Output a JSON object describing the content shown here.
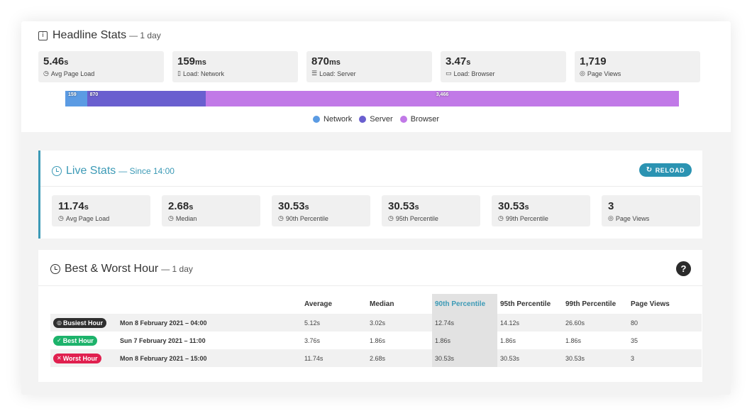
{
  "headline": {
    "title": "Headline Stats",
    "subtitle": "— 1 day",
    "stats": [
      {
        "value": "5.46",
        "unit": "s",
        "label": "Avg Page Load",
        "icon": "clock-icon"
      },
      {
        "value": "159",
        "unit": "ms",
        "label": "Load: Network",
        "icon": "phone-icon"
      },
      {
        "value": "870",
        "unit": "ms",
        "label": "Load: Server",
        "icon": "server-icon"
      },
      {
        "value": "3.47",
        "unit": "s",
        "label": "Load: Browser",
        "icon": "monitor-icon"
      },
      {
        "value": "1,719",
        "unit": "",
        "label": "Page Views",
        "icon": "eye-icon"
      }
    ],
    "load_bar": [
      {
        "label": "159",
        "value": 159,
        "color": "#5b9be3"
      },
      {
        "label": "870",
        "value": 870,
        "color": "#6a5fcf"
      },
      {
        "label": "3,466",
        "value": 3466,
        "color": "#c179e7"
      }
    ],
    "legend": [
      {
        "name": "Network",
        "color": "#5b9be3"
      },
      {
        "name": "Server",
        "color": "#6a5fcf"
      },
      {
        "name": "Browser",
        "color": "#c179e7"
      }
    ]
  },
  "live": {
    "title": "Live Stats",
    "subtitle": "— Since 14:00",
    "reload_label": "RELOAD",
    "accent": "#3c9ab6",
    "stats": [
      {
        "value": "11.74",
        "unit": "s",
        "label": "Avg Page Load",
        "icon": "clock-icon"
      },
      {
        "value": "2.68",
        "unit": "s",
        "label": "Median",
        "icon": "clock-icon"
      },
      {
        "value": "30.53",
        "unit": "s",
        "label": "90th Percentile",
        "icon": "clock-icon"
      },
      {
        "value": "30.53",
        "unit": "s",
        "label": "95th Percentile",
        "icon": "clock-icon"
      },
      {
        "value": "30.53",
        "unit": "s",
        "label": "99th Percentile",
        "icon": "clock-icon"
      },
      {
        "value": "3",
        "unit": "",
        "label": "Page Views",
        "icon": "eye-icon"
      }
    ]
  },
  "best_worst": {
    "title": "Best & Worst Hour",
    "subtitle": "— 1 day",
    "help_label": "?",
    "columns": [
      "",
      "",
      "Average",
      "Median",
      "90th Percentile",
      "95th Percentile",
      "99th Percentile",
      "Page Views"
    ],
    "rows": [
      {
        "badge": "Busiest Hour",
        "badge_icon": "target-icon",
        "badge_color": "#2f2f2f",
        "date": "Mon 8 February 2021 – 04:00",
        "values": [
          "5.12s",
          "3.02s",
          "12.74s",
          "14.12s",
          "26.60s",
          "80"
        ]
      },
      {
        "badge": "Best Hour",
        "badge_icon": "check-icon",
        "badge_color": "#1db36b",
        "date": "Sun 7 February 2021 – 11:00",
        "values": [
          "3.76s",
          "1.86s",
          "1.86s",
          "1.86s",
          "1.86s",
          "35"
        ]
      },
      {
        "badge": "Worst Hour",
        "badge_icon": "cross-icon",
        "badge_color": "#e0204f",
        "date": "Mon 8 February 2021 – 15:00",
        "values": [
          "11.74s",
          "2.68s",
          "30.53s",
          "30.53s",
          "30.53s",
          "3"
        ]
      }
    ]
  }
}
